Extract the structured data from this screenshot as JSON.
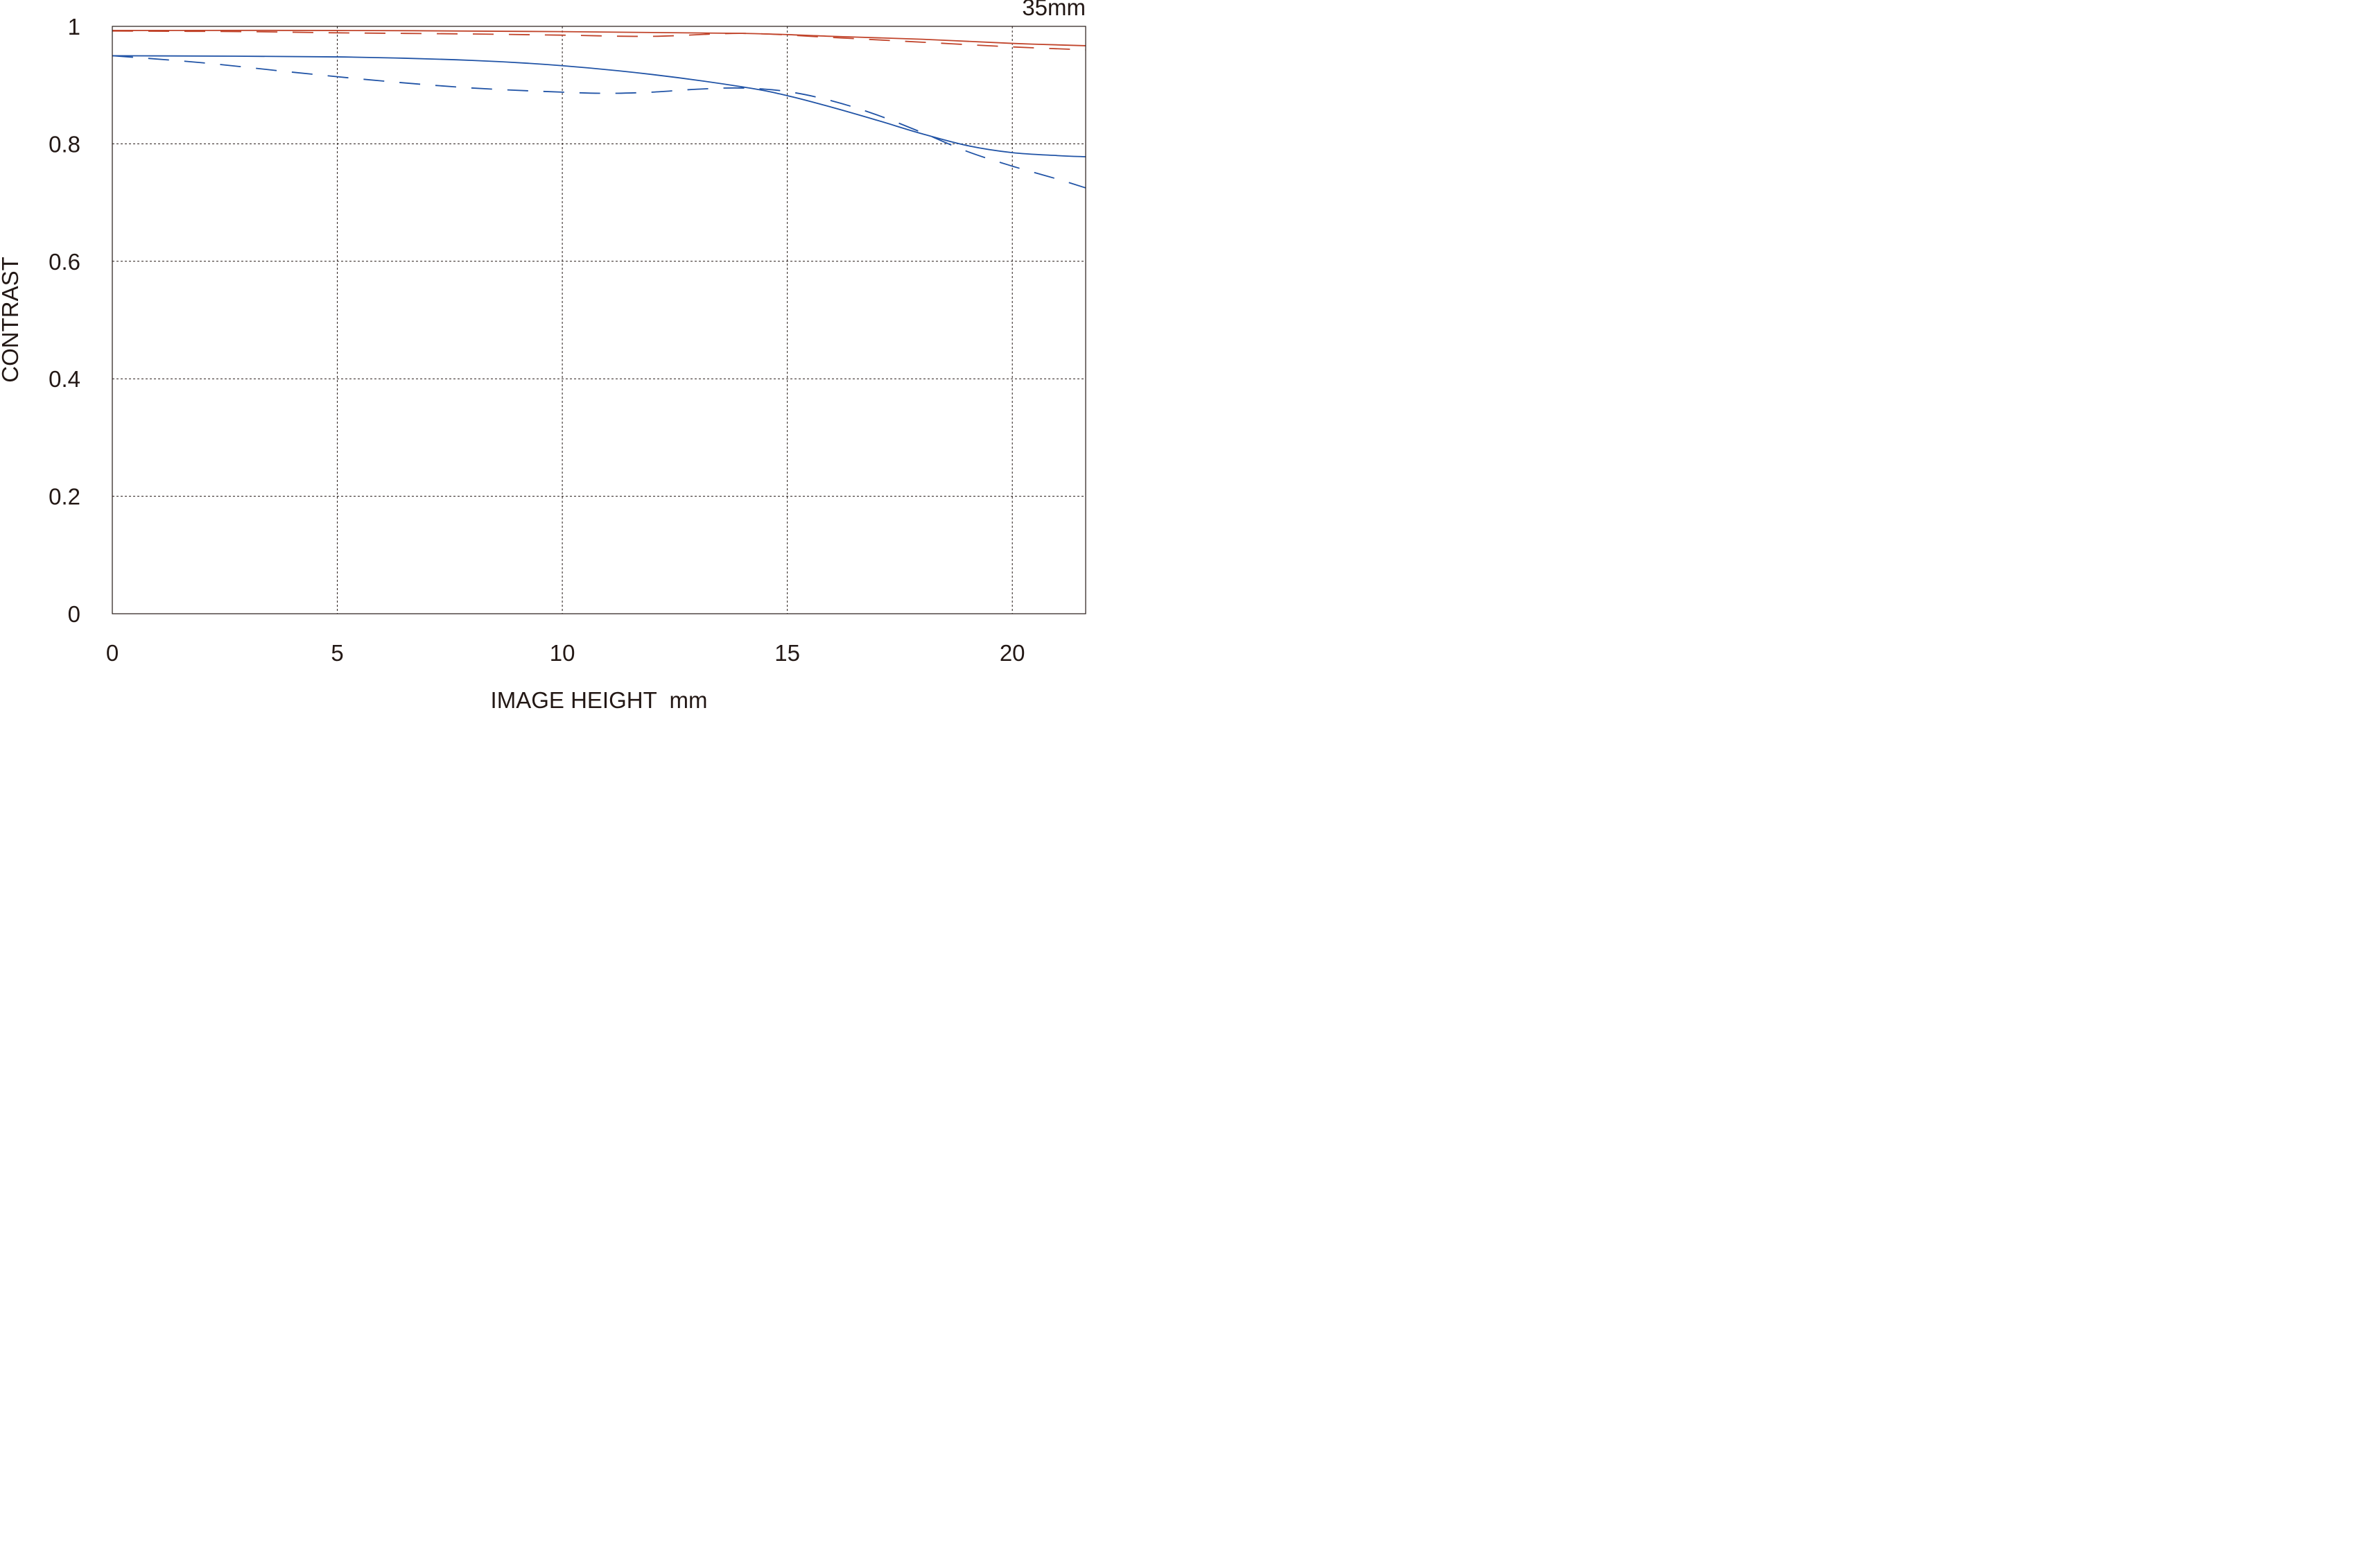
{
  "chart_data": {
    "type": "line",
    "title": "35mm",
    "xlabel": "IMAGE HEIGHT  mm",
    "ylabel": "CONTRAST",
    "xlim": [
      0,
      21.63
    ],
    "ylim": [
      0,
      1
    ],
    "x_ticks": [
      0,
      5,
      10,
      15,
      20
    ],
    "x_tick_labels": [
      "0",
      "5",
      "10",
      "15",
      "20"
    ],
    "y_ticks": [
      0,
      0.2,
      0.4,
      0.6,
      0.8,
      1
    ],
    "y_tick_labels": [
      "0",
      "0.2",
      "0.4",
      "0.6",
      "0.8",
      "1"
    ],
    "grid": true,
    "legend": "none",
    "series": [
      {
        "color": "#c1442b",
        "style": "solid",
        "x": [
          0,
          5,
          10,
          14,
          16,
          18,
          20,
          21.63
        ],
        "values": [
          0.993,
          0.993,
          0.991,
          0.988,
          0.983,
          0.978,
          0.971,
          0.967
        ]
      },
      {
        "color": "#c1442b",
        "style": "dashed",
        "x": [
          0,
          3,
          5,
          8,
          10,
          12,
          14,
          16,
          18,
          20,
          21.63
        ],
        "values": [
          0.992,
          0.991,
          0.989,
          0.987,
          0.985,
          0.983,
          0.988,
          0.981,
          0.973,
          0.965,
          0.96
        ]
      },
      {
        "color": "#2053a6",
        "style": "solid",
        "x": [
          0,
          5,
          8,
          10,
          12,
          14,
          15,
          16,
          17,
          18,
          19,
          20,
          21,
          21.63
        ],
        "values": [
          0.95,
          0.948,
          0.942,
          0.933,
          0.918,
          0.897,
          0.882,
          0.862,
          0.84,
          0.817,
          0.797,
          0.785,
          0.78,
          0.778
        ]
      },
      {
        "color": "#2053a6",
        "style": "dashed",
        "x": [
          0,
          2,
          4,
          6,
          8,
          10,
          11,
          12,
          13,
          14,
          15,
          16,
          17,
          18,
          19,
          20,
          21,
          21.63
        ],
        "values": [
          0.95,
          0.938,
          0.922,
          0.907,
          0.895,
          0.888,
          0.886,
          0.888,
          0.893,
          0.895,
          0.889,
          0.873,
          0.849,
          0.819,
          0.787,
          0.762,
          0.74,
          0.725
        ]
      }
    ]
  }
}
